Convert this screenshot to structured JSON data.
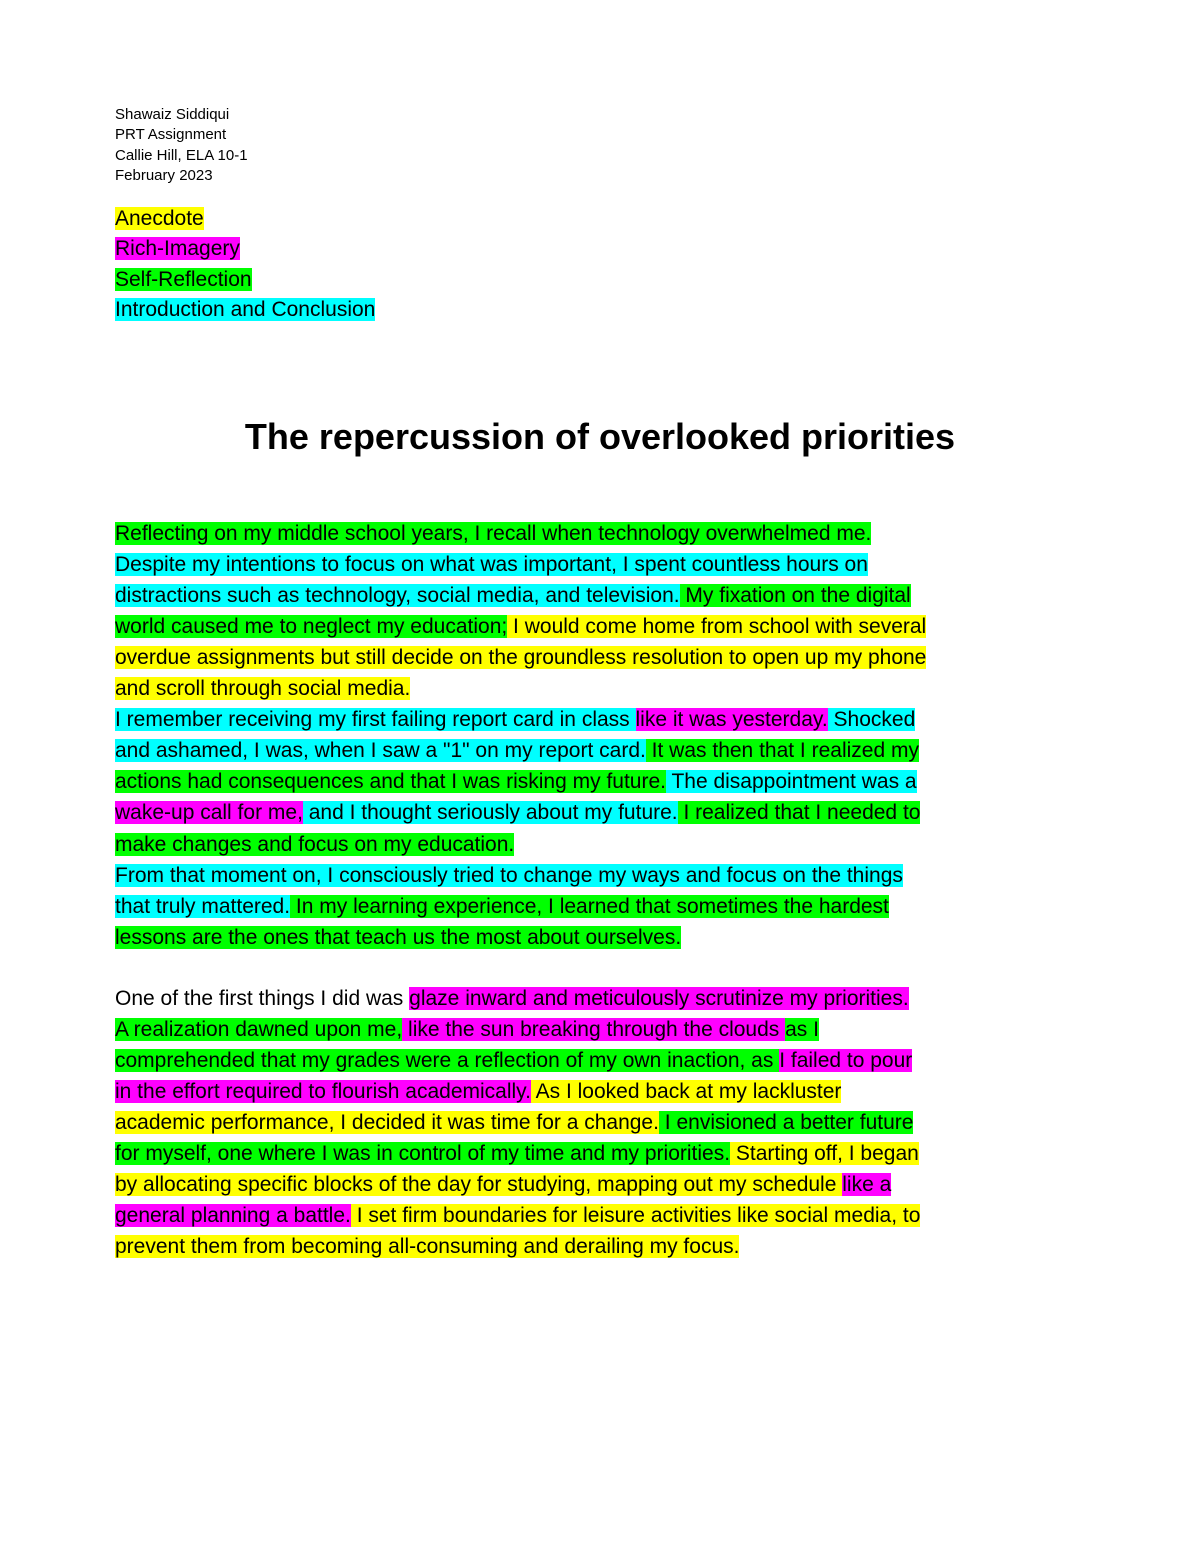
{
  "colors": {
    "anecdote": "#ffff00",
    "rich_imagery": "#ff00ff",
    "self_reflection": "#00ff00",
    "intro_conclusion": "#00ffff",
    "text": "#000000",
    "background": "#ffffff"
  },
  "header": {
    "name": "Shawaiz Siddiqui",
    "assignment": "PRT Assignment",
    "teacher": "Callie Hill, ELA 10-1",
    "date": "February 2023"
  },
  "legend": {
    "anecdote": "Anecdote",
    "rich_imagery": "Rich-Imagery",
    "self_reflection": "Self-Reflection",
    "intro_conclusion": "Introduction and Conclusion"
  },
  "title": "The repercussion of overlooked priorities",
  "p1": {
    "s1": "Reflecting on my middle school years, I recall when technology overwhelmed me.",
    "s2a": "Despite my intentions to focus on what was important, I spent countless hours on",
    "s2b": "distractions such as technology, social media, and television.",
    "s3a": " My fixation on the digital",
    "s3b": "world caused me to neglect my education;",
    "s4a": " I would come home from school with several",
    "s4b": "overdue assignments but still decide on the groundless resolution to open up my phone",
    "s4c": "and scroll through social media."
  },
  "p2": {
    "s1a": "I remember receiving my first failing report card in class ",
    "s1b": "like it was yesterday.",
    "s1c": " Shocked",
    "s2a": "and ashamed, I was, when I saw a \"1\" on my report card.",
    "s2b": " It was then that I realized my",
    "s3a": "actions had consequences and that I was risking my future.",
    "s3b": " The disappointment was a",
    "s4a": "wake-up call for me,",
    "s4b": " and I thought seriously about my future.",
    "s4c": " I realized that I needed to",
    "s5": "make changes and focus on my education."
  },
  "p3": {
    "s1a": "From that moment on, I consciously tried to change my ways and focus on the things",
    "s1b": "that truly mattered.",
    "s2a": " In my learning experience, I learned that sometimes the hardest",
    "s2b": "lessons are the ones that teach us the most about ourselves."
  },
  "p4": {
    "s1a": "One of the first things I did was ",
    "s1b": "glaze inward and meticulously scrutinize my priorities.",
    "s2a": "A realization dawned upon me,",
    "s2b": " like the sun breaking through the clouds ",
    "s2c": "as I",
    "s3a": "comprehended that my grades were a reflection of my own inaction, as ",
    "s3b": "I failed to pour",
    "s4a": "in the effort required to flourish academically.",
    "s4b": " As I looked back at my lackluster",
    "s5a": "academic performance, I decided it was time for a change.",
    "s5b": " I envisioned a better future",
    "s6a": "for myself, one where I was in control of my time and my priorities.",
    "s6b": " Starting off, I began",
    "s7a": "by allocating specific blocks of the day for studying, mapping out my schedule ",
    "s7b": "like a",
    "s8a": "general planning a battle.",
    "s8b": " I set firm boundaries for leisure activities like social media, to",
    "s9": "prevent them from becoming all-consuming and derailing my focus."
  }
}
